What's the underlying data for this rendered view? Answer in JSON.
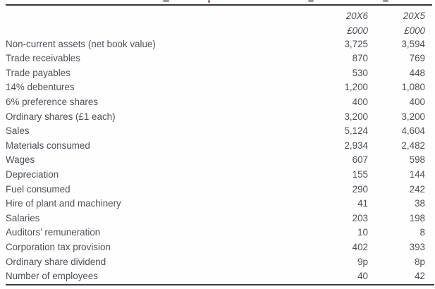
{
  "columns": [
    {
      "year": "20X6",
      "unit": "£000"
    },
    {
      "year": "20X5",
      "unit": "£000"
    }
  ],
  "rows": [
    {
      "label": "Non-current assets (net book value)",
      "v1": "3,725",
      "v2": "3,594"
    },
    {
      "label": "Trade receivables",
      "v1": "870",
      "v2": "769"
    },
    {
      "label": "Trade payables",
      "v1": "530",
      "v2": "448"
    },
    {
      "label": "14% debentures",
      "v1": "1,200",
      "v2": "1,080"
    },
    {
      "label": "6% preference shares",
      "v1": "400",
      "v2": "400"
    },
    {
      "label": "Ordinary shares (£1 each)",
      "v1": "3,200",
      "v2": "3,200"
    },
    {
      "label": "Sales",
      "v1": "5,124",
      "v2": "4,604"
    },
    {
      "label": "Materials consumed",
      "v1": "2,934",
      "v2": "2,482"
    },
    {
      "label": "Wages",
      "v1": "607",
      "v2": "598"
    },
    {
      "label": "Depreciation",
      "v1": "155",
      "v2": "144"
    },
    {
      "label": "Fuel consumed",
      "v1": "290",
      "v2": "242"
    },
    {
      "label": "Hire of plant and machinery",
      "v1": "41",
      "v2": "38"
    },
    {
      "label": "Salaries",
      "v1": "203",
      "v2": "198"
    },
    {
      "label": "Auditors’ remuneration",
      "v1": "10",
      "v2": "8"
    },
    {
      "label": "Corporation tax provision",
      "v1": "402",
      "v2": "393"
    },
    {
      "label": "Ordinary share dividend",
      "v1": "9p",
      "v2": "8p"
    },
    {
      "label": "Number of employees",
      "v1": "40",
      "v2": "42"
    }
  ],
  "colors": {
    "text": "#4c5158",
    "rule": "#35373a",
    "background": "#fefefe"
  }
}
